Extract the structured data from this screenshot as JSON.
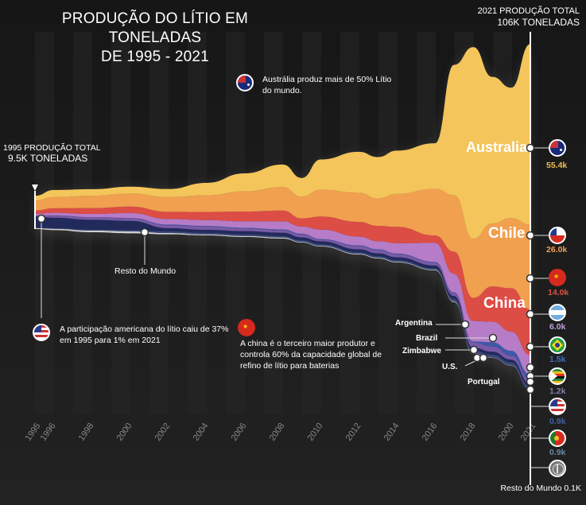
{
  "title_line1": "PRODUÇÃO DO LÍTIO EM TONELADAS",
  "title_line2": "DE 1995 - 2021",
  "total_2021_label": "2021 PRODUÇÃO TOTAL",
  "total_2021_value": "106K TONELADAS",
  "total_1995_label": "1995 PRODUÇÃO TOTAL",
  "total_1995_value": "9.5K TONELADAS",
  "notes": {
    "australia": "Austrália produz mais de 50% Lítio do mundo.",
    "usa": "A participação americana do lítio caiu de 37% em 1995 para 1% em 2021",
    "china": "A china é o terceiro maior produtor e controla 60% da capacidade global de refino de lítio para baterias"
  },
  "labels": {
    "rest_of_world": "Resto do Mundo",
    "rest_of_world_2021": "Resto do Mundo 0.1K",
    "australia": "Australia",
    "chile": "Chile",
    "china": "China",
    "argentina": "Argentina",
    "brazil": "Brazil",
    "zimbabwe": "Zimbabwe",
    "us": "U.S.",
    "portugal": "Portugal"
  },
  "values_2021": {
    "australia": "55.4k",
    "chile": "26.0k",
    "china": "14.0k",
    "argentina": "6.0k",
    "brazil": "1.5k",
    "zimbabwe": "1.2k",
    "us": "0.9k",
    "portugal": "0.9k"
  },
  "icons": [
    "australia-flag-icon",
    "chile-flag-icon",
    "china-flag-icon",
    "argentina-flag-icon",
    "brazil-flag-icon",
    "zimbabwe-flag-icon",
    "usa-flag-icon",
    "portugal-flag-icon",
    "globe-icon"
  ],
  "colors": {
    "background": "#1b1b1b",
    "australia": "#f4c55a",
    "chile": "#f1a04f",
    "china": "#dc4d45",
    "argentina": "#b67cc7",
    "brazil": "#3d59a8",
    "us": "#222a5c",
    "rest": "#cfcfcf",
    "aus_value": "#f0c050",
    "chile_value": "#f0a050",
    "china_value": "#e05040",
    "arg_value": "#c0a0d8",
    "brazil_value": "#4070c0",
    "zim_value": "#8080b0",
    "us_value": "#4060a0",
    "pt_value": "#6a8aa0"
  },
  "chart_data": {
    "type": "area",
    "x_tick_labels": [
      "1995",
      "1996",
      "1998",
      "2000",
      "2002",
      "2004",
      "2006",
      "2008",
      "2010",
      "2012",
      "2014",
      "2016",
      "2018",
      "2000",
      "2021"
    ],
    "x": [
      1995,
      1996,
      1998,
      2000,
      2002,
      2004,
      2006,
      2008,
      2009,
      2010,
      2012,
      2013,
      2014,
      2016,
      2017,
      2018,
      2019,
      2020,
      2021
    ],
    "series": [
      {
        "name": "Australia",
        "values": [
          1.5,
          2.2,
          2.0,
          2.1,
          2.5,
          3.8,
          5.5,
          6.9,
          5.7,
          9.3,
          12.6,
          12.7,
          13.3,
          14.0,
          40.0,
          58.8,
          45.0,
          40.0,
          55.4
        ]
      },
      {
        "name": "Chile",
        "values": [
          3.0,
          3.4,
          3.8,
          4.0,
          4.5,
          5.1,
          6.2,
          7.2,
          6.7,
          8.2,
          8.9,
          8.4,
          10.1,
          14.3,
          17.3,
          18.1,
          19.3,
          21.5,
          26.0
        ]
      },
      {
        "name": "China",
        "values": [
          1.0,
          1.4,
          1.8,
          2.0,
          2.2,
          2.5,
          3.0,
          3.3,
          2.5,
          4.0,
          4.5,
          4.7,
          5.0,
          2.3,
          6.8,
          7.1,
          10.8,
          13.3,
          14.0
        ]
      },
      {
        "name": "Argentina",
        "values": [
          0.5,
          0.8,
          1.0,
          1.5,
          1.7,
          1.8,
          2.0,
          2.5,
          2.2,
          2.9,
          2.7,
          2.5,
          3.2,
          5.8,
          5.7,
          6.3,
          6.3,
          5.9,
          6.0
        ]
      },
      {
        "name": "Brazil",
        "values": [
          0.0,
          0.1,
          0.1,
          0.1,
          0.2,
          0.2,
          0.2,
          0.2,
          0.2,
          0.2,
          0.2,
          0.2,
          0.2,
          0.2,
          0.2,
          0.3,
          1.3,
          1.5,
          1.5
        ]
      },
      {
        "name": "Zimbabwe",
        "values": [
          0.3,
          0.6,
          0.7,
          0.8,
          0.9,
          1.0,
          0.8,
          0.8,
          0.9,
          0.5,
          1.0,
          1.0,
          0.9,
          0.9,
          0.9,
          1.6,
          1.6,
          1.2,
          1.2
        ]
      },
      {
        "name": "U.S.",
        "values": [
          3.5,
          3.2,
          3.0,
          2.8,
          1.0,
          0.9,
          1.0,
          1.0,
          0.9,
          0.9,
          0.9,
          0.9,
          0.9,
          0.9,
          0.9,
          0.9,
          0.9,
          0.9,
          0.9
        ]
      },
      {
        "name": "Portugal",
        "values": [
          0.1,
          0.2,
          0.3,
          0.4,
          0.5,
          0.5,
          0.5,
          0.5,
          0.5,
          0.5,
          0.5,
          0.5,
          0.5,
          0.4,
          0.8,
          0.8,
          0.9,
          0.9,
          0.9
        ]
      },
      {
        "name": "Resto do Mundo",
        "values": [
          0.3,
          0.4,
          0.5,
          0.6,
          0.4,
          0.3,
          0.3,
          0.3,
          0.2,
          0.2,
          0.2,
          0.2,
          0.2,
          0.2,
          0.2,
          0.2,
          0.1,
          0.1,
          0.1
        ]
      }
    ],
    "baseline": "stacked",
    "grid": true,
    "legend": "labels-inline"
  }
}
